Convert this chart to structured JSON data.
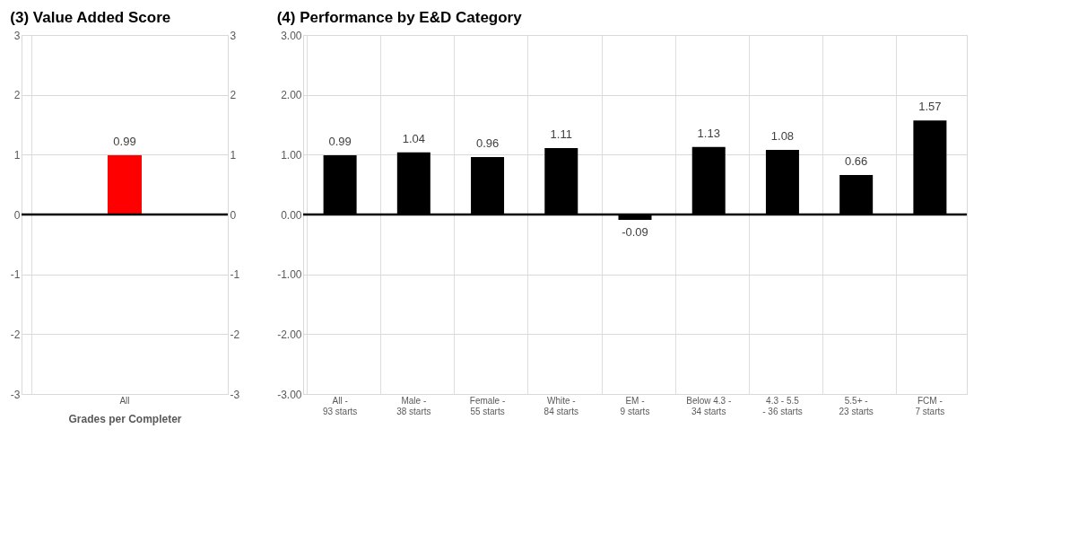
{
  "chart_data": [
    {
      "type": "bar",
      "title": "(3) Value Added Score",
      "xlabel": "Grades per Completer",
      "categories": [
        "All"
      ],
      "series": [
        {
          "color": "#ff0000",
          "values": [
            0.99
          ]
        }
      ],
      "ylim": [
        -3,
        3
      ],
      "yticks": [
        -3,
        -2,
        -1,
        0,
        1,
        2,
        3
      ],
      "y2lim": [
        -3,
        3
      ],
      "y2ticks": [
        -3,
        -2,
        -1,
        0,
        1,
        2,
        3
      ],
      "ref_lines": [
        {
          "axis": "y",
          "value": 0,
          "color": "#000000"
        }
      ],
      "data_labels": true,
      "grid": true
    },
    {
      "type": "bar",
      "title": "(4) Performance by E&D Category",
      "categories": [
        "All - 93 starts",
        "Male - 38 starts",
        "Female - 55 starts",
        "White - 84 starts",
        "EM - 9 starts",
        "Below 4.3 - 34 starts",
        "4.3 - 5.5 - 36 starts",
        "5.5+ - 23 starts",
        "FCM - 7 starts"
      ],
      "series": [
        {
          "color": "#000000",
          "values": [
            0.99,
            1.04,
            0.96,
            1.11,
            -0.09,
            1.13,
            1.08,
            0.66,
            1.57
          ]
        }
      ],
      "ylim": [
        -3,
        3
      ],
      "yticks": [
        {
          "value": -3,
          "label": "-3.00"
        },
        {
          "value": -2,
          "label": "-2.00"
        },
        {
          "value": -1,
          "label": "-1.00"
        },
        {
          "value": 0,
          "label": "0.00"
        },
        {
          "value": 1,
          "label": "1.00"
        },
        {
          "value": 2,
          "label": "2.00"
        },
        {
          "value": 3,
          "label": "3.00"
        }
      ],
      "ref_lines": [
        {
          "axis": "y",
          "value": 0,
          "color": "#000000"
        }
      ],
      "data_labels": true,
      "grid": true
    }
  ]
}
